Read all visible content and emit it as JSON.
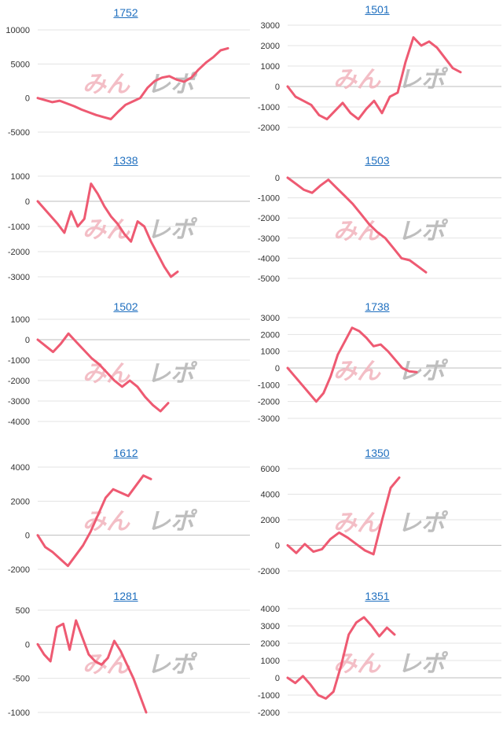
{
  "style": {
    "line_color": "#ee5a72",
    "grid_color": "#e3e3e3",
    "zero_color": "#bdbdbd",
    "title_color": "#1f6fbf",
    "watermark_pink": "#f2b8c0",
    "watermark_gray": "#b8b8b8"
  },
  "watermark": "みんレポ",
  "chart_data": [
    {
      "type": "line",
      "title": "1752",
      "yticks": [
        -5000,
        0,
        5000,
        10000
      ],
      "ylim": [
        -5000,
        10000
      ],
      "values": [
        0,
        -300,
        -600,
        -400,
        -800,
        -1200,
        -1700,
        -2100,
        -2500,
        -2800,
        -3100,
        -2000,
        -1000,
        -500,
        0,
        1500,
        2500,
        3000,
        3200,
        2700,
        2400,
        3000,
        4200,
        5200,
        6000,
        7000,
        7300
      ]
    },
    {
      "type": "line",
      "title": "1501",
      "yticks": [
        -2000,
        -1000,
        0,
        1000,
        2000,
        3000
      ],
      "ylim": [
        -2000,
        3000
      ],
      "values": [
        0,
        -500,
        -700,
        -900,
        -1400,
        -1600,
        -1200,
        -800,
        -1300,
        -1600,
        -1100,
        -700,
        -1300,
        -500,
        -300,
        1200,
        2400,
        2000,
        2200,
        1900,
        1400,
        900,
        700
      ]
    },
    {
      "type": "line",
      "title": "1338",
      "yticks": [
        -3000,
        -2000,
        -1000,
        0,
        1000
      ],
      "ylim": [
        -3000,
        1000
      ],
      "values": [
        0,
        -300,
        -600,
        -900,
        -1250,
        -400,
        -1000,
        -700,
        700,
        300,
        -200,
        -600,
        -900,
        -1300,
        -1600,
        -800,
        -1000,
        -1600,
        -2100,
        -2600,
        -3000,
        -2800
      ]
    },
    {
      "type": "line",
      "title": "1503",
      "yticks": [
        -5000,
        -4000,
        -3000,
        -2000,
        -1000,
        0
      ],
      "ylim": [
        -5000,
        0
      ],
      "values": [
        0,
        -300,
        -600,
        -750,
        -400,
        -100,
        -500,
        -900,
        -1300,
        -1800,
        -2300,
        -2700,
        -3000,
        -3500,
        -4000,
        -4100,
        -4400,
        -4700
      ]
    },
    {
      "type": "line",
      "title": "1502",
      "yticks": [
        -4000,
        -3000,
        -2000,
        -1000,
        0,
        1000
      ],
      "ylim": [
        -4000,
        1000
      ],
      "values": [
        0,
        -300,
        -600,
        -200,
        300,
        -100,
        -500,
        -900,
        -1200,
        -1600,
        -2000,
        -2300,
        -2000,
        -2300,
        -2800,
        -3200,
        -3500,
        -3100
      ]
    },
    {
      "type": "line",
      "title": "1738",
      "yticks": [
        -3000,
        -2000,
        -1000,
        0,
        1000,
        2000,
        3000
      ],
      "ylim": [
        -3000,
        3000
      ],
      "values": [
        0,
        -500,
        -1000,
        -1500,
        -2000,
        -1500,
        -500,
        800,
        1600,
        2400,
        2200,
        1800,
        1300,
        1400,
        1000,
        500,
        0,
        -200,
        -250
      ]
    },
    {
      "type": "line",
      "title": "1612",
      "yticks": [
        -2000,
        0,
        2000,
        4000
      ],
      "ylim": [
        -2000,
        4000
      ],
      "values": [
        0,
        -700,
        -1000,
        -1400,
        -1800,
        -1200,
        -600,
        200,
        1200,
        2200,
        2700,
        2500,
        2300,
        2900,
        3500,
        3300
      ]
    },
    {
      "type": "line",
      "title": "1350",
      "yticks": [
        -2000,
        0,
        2000,
        4000,
        6000
      ],
      "ylim": [
        -2000,
        6000
      ],
      "values": [
        0,
        -600,
        100,
        -500,
        -300,
        500,
        1000,
        600,
        100,
        -400,
        -700,
        2000,
        4500,
        5300
      ]
    },
    {
      "type": "line",
      "title": "1281",
      "yticks": [
        -1000,
        -500,
        0,
        500
      ],
      "ylim": [
        -1000,
        500
      ],
      "values": [
        0,
        -150,
        -250,
        250,
        300,
        -80,
        350,
        100,
        -150,
        -250,
        -300,
        -200,
        50,
        -100,
        -300,
        -500,
        -750,
        -1000
      ]
    },
    {
      "type": "line",
      "title": "1351",
      "yticks": [
        -2000,
        -1000,
        0,
        1000,
        2000,
        3000,
        4000
      ],
      "ylim": [
        -2000,
        4000
      ],
      "values": [
        0,
        -300,
        100,
        -400,
        -1000,
        -1200,
        -800,
        700,
        2500,
        3200,
        3500,
        3000,
        2400,
        2900,
        2500
      ]
    }
  ]
}
